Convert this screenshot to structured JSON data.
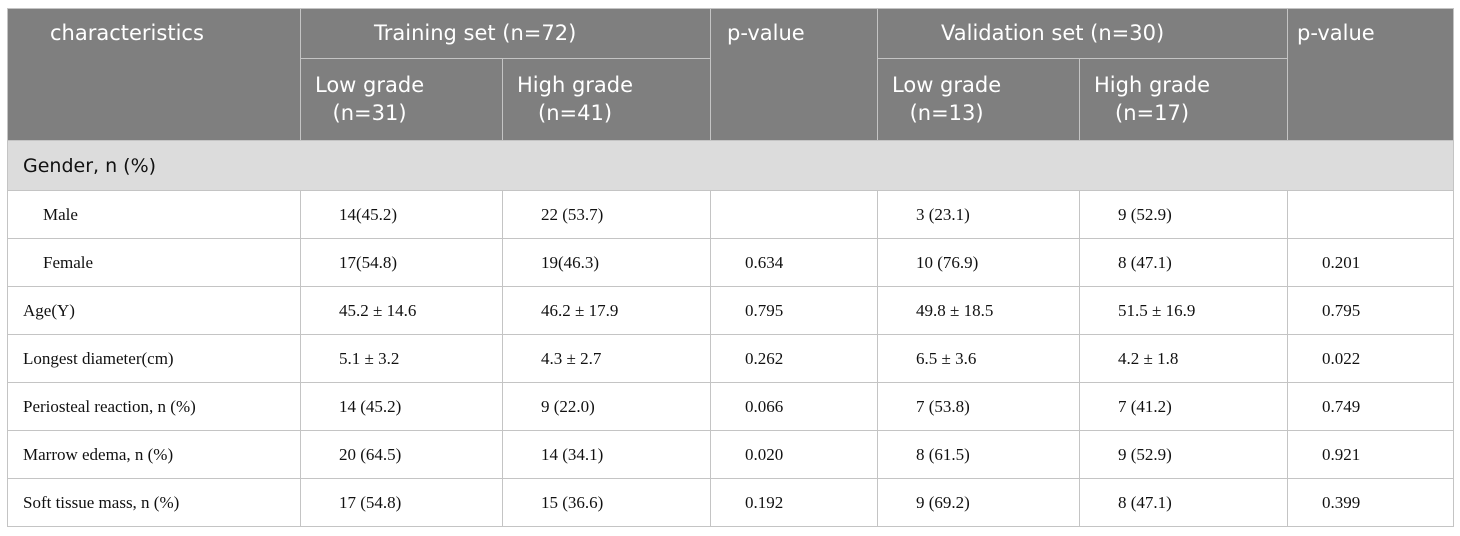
{
  "table": {
    "header": {
      "row1": [
        "characteristics",
        "Training set (n=72)",
        "p-value",
        "Validation set (n=30)",
        "p-value"
      ],
      "row2": [
        [
          "Low grade",
          "(n=31)"
        ],
        [
          "High grade",
          "(n=41)"
        ],
        [
          "Low grade",
          "(n=13)"
        ],
        [
          "High grade",
          "(n=17)"
        ]
      ]
    },
    "group": {
      "title": "Gender, n (%)",
      "rows": [
        [
          "Male",
          "14(45.2)",
          "22 (53.7)",
          null,
          "3 (23.1)",
          "9 (52.9)",
          null
        ],
        [
          "Female",
          "17(54.8)",
          "19(46.3)",
          "0.634",
          "10 (76.9)",
          "8 (47.1)",
          "0.201"
        ]
      ]
    },
    "rows": [
      [
        "Age(Y)",
        "45.2 ± 14.6",
        "46.2 ± 17.9",
        "0.795",
        "49.8 ± 18.5",
        "51.5 ± 16.9",
        "0.795"
      ],
      [
        "Longest diameter(cm)",
        "5.1 ± 3.2",
        "4.3 ± 2.7",
        "0.262",
        "6.5 ± 3.6",
        "4.2 ± 1.8",
        "0.022"
      ],
      [
        "Periosteal reaction, n (%)",
        "14 (45.2)",
        "9 (22.0)",
        "0.066",
        "7 (53.8)",
        "7 (41.2)",
        "0.749"
      ],
      [
        "Marrow edema, n (%)",
        "20 (64.5)",
        "14 (34.1)",
        "0.020",
        "8 (61.5)",
        "9 (52.9)",
        "0.921"
      ],
      [
        "Soft tissue mass, n (%)",
        "17 (54.8)",
        "15 (36.6)",
        "0.192",
        "9 (69.2)",
        "8 (47.1)",
        "0.399"
      ]
    ]
  }
}
